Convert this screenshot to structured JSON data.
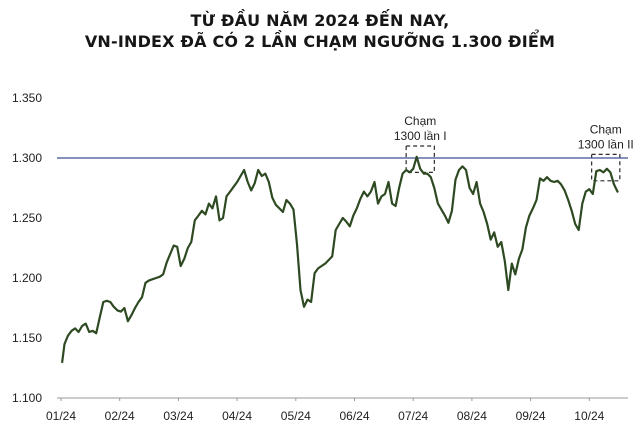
{
  "title_lines": [
    "TỪ ĐẦU NĂM 2024 ĐẾN NAY,",
    "VN-INDEX ĐÃ CÓ 2 LẦN CHẠM NGƯỠNG 1.300 ĐIỂM"
  ],
  "chart_data": {
    "type": "line",
    "title": "TỪ ĐẦU NĂM 2024 ĐẾN NAY, VN-INDEX ĐÃ CÓ 2 LẦN CHẠM NGƯỠNG 1.300 ĐIỂM",
    "xlabel": "",
    "ylabel": "",
    "ylim": [
      1100,
      1350
    ],
    "xlim": [
      0,
      9.2
    ],
    "y_ticks": [
      1100,
      1150,
      1200,
      1250,
      1300,
      1350
    ],
    "y_tick_labels": [
      "1.100",
      "1.150",
      "1.200",
      "1.250",
      "1.300",
      "1.350"
    ],
    "x_tick_labels": [
      "01/24",
      "02/24",
      "03/24",
      "04/24",
      "05/24",
      "06/24",
      "07/24",
      "08/24",
      "09/24",
      "10/24"
    ],
    "grid": false,
    "line_color": "#2e4a22",
    "reference_line": {
      "y": 1300,
      "color": "#3d4f8f"
    },
    "series": [
      {
        "values": [
          [
            0.02,
            1130
          ],
          [
            0.06,
            1145
          ],
          [
            0.12,
            1152
          ],
          [
            0.18,
            1156
          ],
          [
            0.24,
            1158
          ],
          [
            0.3,
            1155
          ],
          [
            0.36,
            1160
          ],
          [
            0.42,
            1162
          ],
          [
            0.48,
            1155
          ],
          [
            0.54,
            1156
          ],
          [
            0.6,
            1154
          ],
          [
            0.66,
            1167
          ],
          [
            0.72,
            1180
          ],
          [
            0.78,
            1181
          ],
          [
            0.84,
            1180
          ],
          [
            0.9,
            1176
          ],
          [
            0.96,
            1173
          ],
          [
            1.02,
            1172
          ],
          [
            1.08,
            1175
          ],
          [
            1.14,
            1164
          ],
          [
            1.2,
            1169
          ],
          [
            1.26,
            1175
          ],
          [
            1.32,
            1180
          ],
          [
            1.38,
            1184
          ],
          [
            1.44,
            1196
          ],
          [
            1.5,
            1198
          ],
          [
            1.56,
            1199
          ],
          [
            1.62,
            1200
          ],
          [
            1.68,
            1201
          ],
          [
            1.74,
            1203
          ],
          [
            1.8,
            1213
          ],
          [
            1.86,
            1220
          ],
          [
            1.92,
            1227
          ],
          [
            1.98,
            1226
          ],
          [
            2.04,
            1210
          ],
          [
            2.1,
            1216
          ],
          [
            2.16,
            1225
          ],
          [
            2.22,
            1230
          ],
          [
            2.28,
            1248
          ],
          [
            2.34,
            1252
          ],
          [
            2.4,
            1256
          ],
          [
            2.46,
            1253
          ],
          [
            2.52,
            1262
          ],
          [
            2.58,
            1258
          ],
          [
            2.64,
            1268
          ],
          [
            2.7,
            1248
          ],
          [
            2.76,
            1250
          ],
          [
            2.82,
            1268
          ],
          [
            2.88,
            1272
          ],
          [
            2.94,
            1276
          ],
          [
            3.0,
            1280
          ],
          [
            3.06,
            1285
          ],
          [
            3.12,
            1290
          ],
          [
            3.18,
            1280
          ],
          [
            3.24,
            1273
          ],
          [
            3.3,
            1279
          ],
          [
            3.36,
            1290
          ],
          [
            3.42,
            1285
          ],
          [
            3.48,
            1287
          ],
          [
            3.54,
            1280
          ],
          [
            3.6,
            1267
          ],
          [
            3.66,
            1261
          ],
          [
            3.72,
            1258
          ],
          [
            3.78,
            1255
          ],
          [
            3.84,
            1265
          ],
          [
            3.9,
            1262
          ],
          [
            3.96,
            1257
          ],
          [
            4.02,
            1228
          ],
          [
            4.08,
            1190
          ],
          [
            4.14,
            1176
          ],
          [
            4.2,
            1182
          ],
          [
            4.26,
            1180
          ],
          [
            4.32,
            1204
          ],
          [
            4.38,
            1208
          ],
          [
            4.44,
            1210
          ],
          [
            4.5,
            1212
          ],
          [
            4.56,
            1215
          ],
          [
            4.62,
            1218
          ],
          [
            4.68,
            1240
          ],
          [
            4.74,
            1245
          ],
          [
            4.8,
            1250
          ],
          [
            4.86,
            1247
          ],
          [
            4.92,
            1243
          ],
          [
            4.98,
            1252
          ],
          [
            5.04,
            1258
          ],
          [
            5.1,
            1266
          ],
          [
            5.16,
            1272
          ],
          [
            5.22,
            1268
          ],
          [
            5.28,
            1272
          ],
          [
            5.34,
            1280
          ],
          [
            5.4,
            1262
          ],
          [
            5.46,
            1268
          ],
          [
            5.52,
            1270
          ],
          [
            5.58,
            1280
          ],
          [
            5.64,
            1262
          ],
          [
            5.7,
            1260
          ],
          [
            5.76,
            1275
          ],
          [
            5.82,
            1287
          ],
          [
            5.88,
            1290
          ],
          [
            5.94,
            1288
          ],
          [
            6.0,
            1291
          ],
          [
            6.06,
            1301
          ],
          [
            6.12,
            1291
          ],
          [
            6.18,
            1287
          ],
          [
            6.24,
            1287
          ],
          [
            6.3,
            1284
          ],
          [
            6.36,
            1275
          ],
          [
            6.42,
            1262
          ],
          [
            6.48,
            1257
          ],
          [
            6.54,
            1252
          ],
          [
            6.6,
            1246
          ],
          [
            6.66,
            1256
          ],
          [
            6.72,
            1282
          ],
          [
            6.78,
            1290
          ],
          [
            6.84,
            1293
          ],
          [
            6.9,
            1290
          ],
          [
            6.96,
            1275
          ],
          [
            7.02,
            1270
          ],
          [
            7.08,
            1280
          ],
          [
            7.14,
            1262
          ],
          [
            7.2,
            1255
          ],
          [
            7.26,
            1245
          ],
          [
            7.32,
            1232
          ],
          [
            7.38,
            1238
          ],
          [
            7.44,
            1226
          ],
          [
            7.5,
            1230
          ],
          [
            7.56,
            1214
          ],
          [
            7.62,
            1190
          ],
          [
            7.68,
            1212
          ],
          [
            7.74,
            1203
          ],
          [
            7.8,
            1216
          ],
          [
            7.86,
            1224
          ],
          [
            7.92,
            1242
          ],
          [
            7.98,
            1252
          ],
          [
            8.04,
            1258
          ],
          [
            8.1,
            1265
          ],
          [
            8.16,
            1283
          ],
          [
            8.22,
            1281
          ],
          [
            8.28,
            1284
          ],
          [
            8.34,
            1281
          ],
          [
            8.4,
            1280
          ],
          [
            8.46,
            1281
          ],
          [
            8.52,
            1278
          ],
          [
            8.58,
            1273
          ],
          [
            8.64,
            1265
          ],
          [
            8.7,
            1256
          ],
          [
            8.76,
            1245
          ],
          [
            8.82,
            1240
          ],
          [
            8.88,
            1262
          ],
          [
            8.94,
            1272
          ],
          [
            9.0,
            1274
          ],
          [
            9.06,
            1270
          ],
          [
            9.12,
            1289
          ],
          [
            9.18,
            1290
          ],
          [
            9.24,
            1288
          ],
          [
            9.3,
            1291
          ],
          [
            9.36,
            1288
          ],
          [
            9.42,
            1278
          ],
          [
            9.48,
            1272
          ]
        ]
      }
    ],
    "annotations": [
      {
        "lines": [
          "Chạm",
          "1300 lần I"
        ],
        "x_range": [
          5.88,
          6.36
        ],
        "y_range": [
          1288,
          1310
        ]
      },
      {
        "lines": [
          "Chạm",
          "1300 lần II"
        ],
        "x_range": [
          9.04,
          9.52
        ],
        "y_range": [
          1281,
          1303
        ]
      }
    ]
  }
}
